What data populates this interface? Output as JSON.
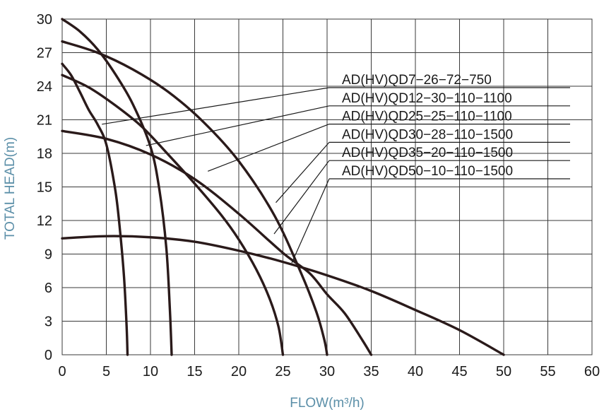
{
  "chart_data": {
    "type": "line",
    "xlabel": "FLOW(m³/h)",
    "ylabel": "TOTAL HEAD(m)",
    "xlim": [
      0,
      60
    ],
    "ylim": [
      0,
      30
    ],
    "xticks": [
      "0",
      "5",
      "10",
      "15",
      "20",
      "25",
      "30",
      "35",
      "40",
      "45",
      "50",
      "55",
      "60"
    ],
    "yticks": [
      "0",
      "3",
      "6",
      "9",
      "12",
      "15",
      "18",
      "21",
      "24",
      "27",
      "30"
    ],
    "grid": true,
    "legend_placement": "top-right, with leader lines to curves",
    "curve_color": "#2a1a1a",
    "series": [
      {
        "name": "AD(HV)QD7−26−72−750",
        "x": [
          0,
          1,
          2,
          3,
          4,
          5,
          6,
          6.5,
          7,
          7.3,
          7.4
        ],
        "y": [
          26,
          25,
          23.5,
          21.9,
          20.6,
          18.8,
          14.8,
          11.5,
          7,
          2.5,
          0
        ],
        "label_anchor": [
          4.5,
          20.6
        ]
      },
      {
        "name": "AD(HV)QD12−30−110−1100",
        "x": [
          0,
          2,
          4,
          6,
          8,
          10,
          11,
          11.8,
          12.2,
          12.4
        ],
        "y": [
          30,
          28.9,
          27.3,
          25.1,
          22.4,
          18.6,
          14.8,
          9.5,
          4,
          0
        ],
        "label_anchor": [
          9.5,
          18.7
        ]
      },
      {
        "name": "AD(HV)QD25−25−110−1100",
        "x": [
          0,
          3,
          6,
          9,
          12,
          15,
          18,
          20,
          22,
          23.5,
          24.5,
          25
        ],
        "y": [
          25,
          23.9,
          22.3,
          20.4,
          17.9,
          15.3,
          12.5,
          10.3,
          7.6,
          5,
          2.5,
          0
        ],
        "label_anchor": [
          16.5,
          16.4
        ]
      },
      {
        "name": "AD(HV)QD30−28−110−1500",
        "x": [
          0,
          4,
          8,
          12,
          16,
          20,
          24,
          27,
          28.8,
          29.7,
          30
        ],
        "y": [
          28,
          27,
          25.5,
          23.5,
          20.8,
          17.3,
          12.5,
          7.4,
          3.8,
          1.3,
          0
        ],
        "label_anchor": [
          24.2,
          13.6
        ]
      },
      {
        "name": "AD(HV)QD35−20−110−1500",
        "x": [
          0,
          5,
          10,
          15,
          20,
          25,
          28,
          30,
          32,
          34,
          35
        ],
        "y": [
          20,
          19.3,
          17.9,
          15.7,
          12.6,
          9.1,
          7.3,
          5.4,
          3.7,
          1.3,
          0
        ],
        "label_anchor": [
          24,
          10.8
        ]
      },
      {
        "name": "AD(HV)QD50−10−110−1500",
        "x": [
          0,
          5,
          10,
          15,
          20,
          25,
          30,
          35,
          40,
          45,
          50
        ],
        "y": [
          10.4,
          10.6,
          10.5,
          10.1,
          9.3,
          8.3,
          7.1,
          5.7,
          4.0,
          2.2,
          0
        ],
        "label_anchor": [
          26,
          8.2
        ]
      }
    ]
  }
}
